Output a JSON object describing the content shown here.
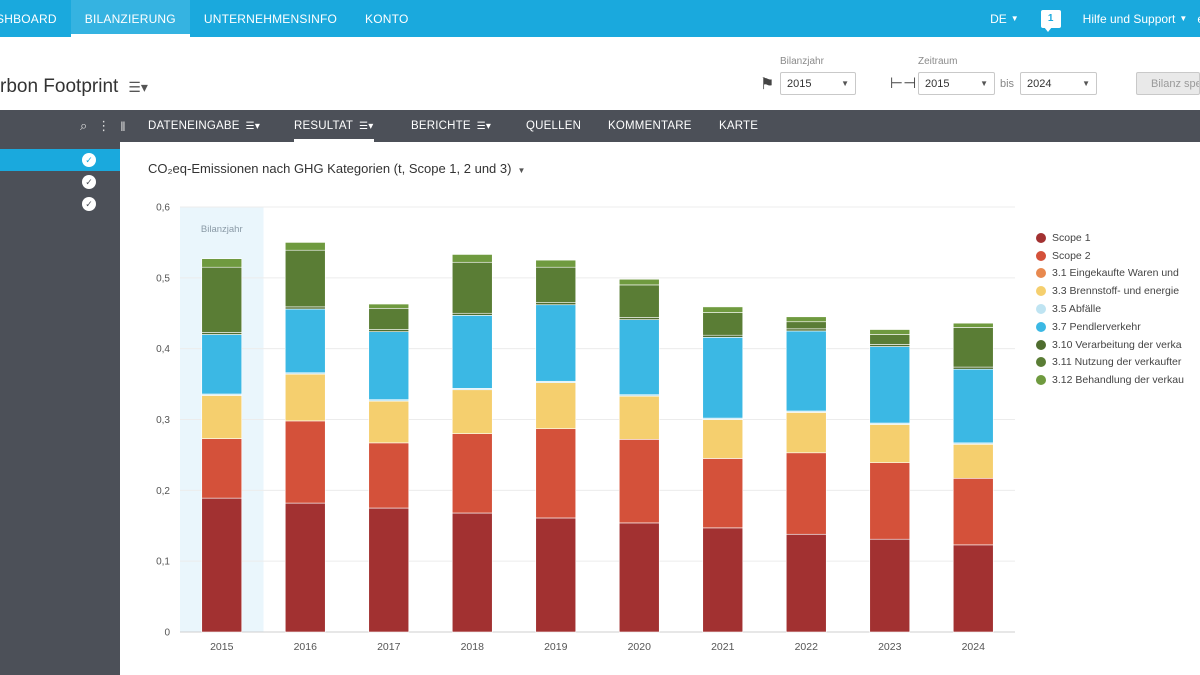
{
  "topnav": {
    "items": [
      {
        "label": "SHBOARD",
        "active": false
      },
      {
        "label": "BILANZIERUNG",
        "active": true
      },
      {
        "label": "UNTERNEHMENSINFO",
        "active": false
      },
      {
        "label": "KONTO",
        "active": false
      }
    ],
    "language": "DE",
    "notification_count": "1",
    "help_label": "Hilfe und Support",
    "trailing": "e"
  },
  "header": {
    "title": "rbon Footprint",
    "bilanzjahr_label": "Bilanzjahr",
    "bilanzjahr_value": "2015",
    "zeitraum_label": "Zeitraum",
    "zeitraum_from": "2015",
    "bis_label": "bis",
    "zeitraum_to": "2024",
    "save_button_label": "Bilanz spe"
  },
  "toolbar": {
    "tabs": [
      {
        "label": "DATENEINGABE",
        "menu": true,
        "active": false
      },
      {
        "label": "RESULTAT",
        "menu": true,
        "active": true
      },
      {
        "label": "BERICHTE",
        "menu": true,
        "active": false
      },
      {
        "label": "QUELLEN",
        "menu": false,
        "active": false
      },
      {
        "label": "KOMMENTARE",
        "menu": false,
        "active": false
      },
      {
        "label": "KARTE",
        "menu": false,
        "active": false
      }
    ]
  },
  "sidebar": {
    "items": [
      {
        "active": true,
        "checked": true
      },
      {
        "active": false,
        "checked": true
      },
      {
        "active": false,
        "checked": true
      }
    ]
  },
  "chart": {
    "title": "CO₂eq-Emissionen nach GHG Kategorien (t, Scope 1, 2 und 3)",
    "highlight_label": "Bilanzjahr"
  },
  "chart_data": {
    "type": "bar",
    "stacked": true,
    "categories": [
      "2015",
      "2016",
      "2017",
      "2018",
      "2019",
      "2020",
      "2021",
      "2022",
      "2023",
      "2024"
    ],
    "ylim": [
      0,
      0.6
    ],
    "yticks": [
      "0",
      "0,1",
      "0,2",
      "0,3",
      "0,4",
      "0,5",
      "0,6"
    ],
    "highlight_category": "2015",
    "legend_position": "right",
    "series": [
      {
        "name": "Scope 1",
        "color": "#a23131",
        "values": [
          0.189,
          0.182,
          0.175,
          0.168,
          0.161,
          0.154,
          0.147,
          0.138,
          0.131,
          0.123
        ]
      },
      {
        "name": "Scope 2",
        "color": "#d4513a",
        "values": [
          0.084,
          0.116,
          0.092,
          0.112,
          0.126,
          0.118,
          0.098,
          0.115,
          0.108,
          0.094
        ]
      },
      {
        "name": "3.1 Eingekaufte Waren und",
        "color": "#e8894f",
        "values": [
          0,
          0,
          0,
          0,
          0,
          0,
          0,
          0,
          0,
          0
        ]
      },
      {
        "name": "3.3 Brennstoff- und energie",
        "color": "#f5cf6e",
        "values": [
          0.061,
          0.066,
          0.059,
          0.062,
          0.065,
          0.061,
          0.055,
          0.057,
          0.054,
          0.048
        ]
      },
      {
        "name": "3.5 Abfälle",
        "color": "#bfe4f2",
        "values": [
          0.002,
          0.002,
          0.002,
          0.002,
          0.002,
          0.002,
          0.002,
          0.002,
          0.002,
          0.002
        ]
      },
      {
        "name": "3.7 Pendlerverkehr",
        "color": "#3bb8e4",
        "values": [
          0.084,
          0.09,
          0.096,
          0.103,
          0.108,
          0.106,
          0.114,
          0.113,
          0.108,
          0.104
        ]
      },
      {
        "name": "3.10 Verarbeitung der verka",
        "color": "#4f6d2f",
        "values": [
          0.003,
          0.003,
          0.003,
          0.003,
          0.003,
          0.003,
          0.003,
          0.003,
          0.003,
          0.003
        ]
      },
      {
        "name": "3.11 Nutzung der verkaufter",
        "color": "#5a7d35",
        "values": [
          0.092,
          0.08,
          0.03,
          0.072,
          0.05,
          0.046,
          0.032,
          0.01,
          0.014,
          0.056
        ]
      },
      {
        "name": "3.12 Behandlung der verkau",
        "color": "#6f9a3f",
        "values": [
          0.012,
          0.011,
          0.006,
          0.011,
          0.01,
          0.008,
          0.008,
          0.007,
          0.007,
          0.006
        ]
      }
    ]
  }
}
